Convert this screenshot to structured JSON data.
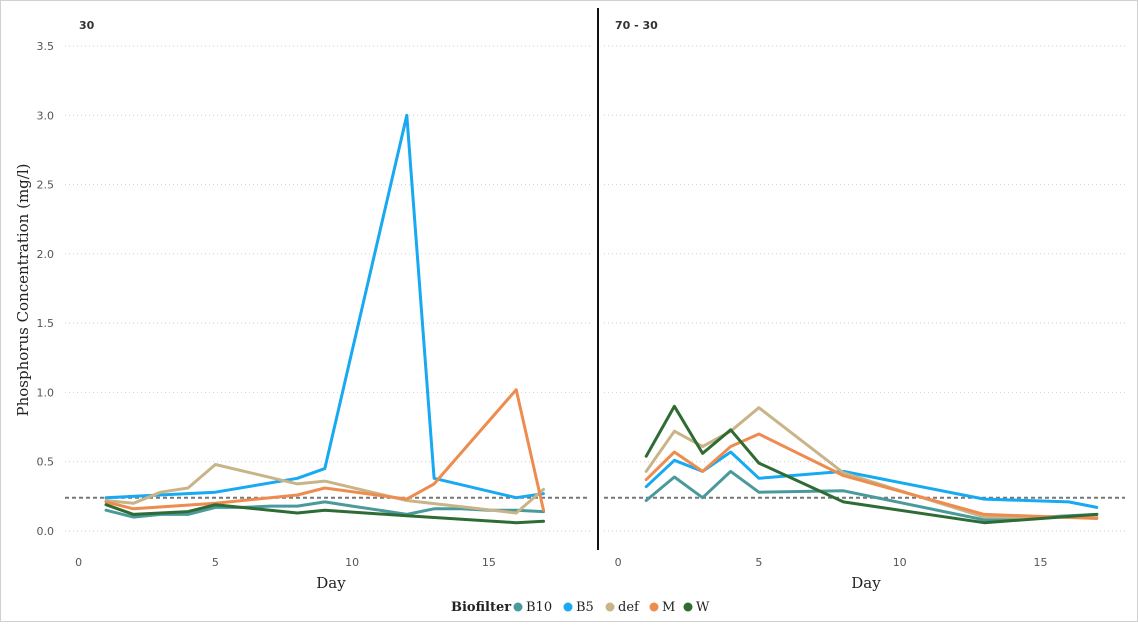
{
  "chart_data": {
    "type": "line",
    "ylabel": "Phosphorus Concentration (mg/l)",
    "y_ticks": [
      "0.0",
      "0.5",
      "1.0",
      "1.5",
      "2.0",
      "2.5",
      "3.0",
      "3.5"
    ],
    "ylim": [
      0,
      3.5
    ],
    "reference_line": {
      "y": 0.24,
      "style": "dashed",
      "color": "#777777"
    },
    "grid": "horizontal dotted",
    "legend": {
      "title": "Biofilter",
      "position": "bottom-center",
      "items": [
        "B10",
        "B5",
        "def",
        "M",
        "W"
      ]
    },
    "colors": {
      "B10": "#4A9A9C",
      "B5": "#17A9F2",
      "def": "#C8B487",
      "M": "#EE8C4F",
      "W": "#2E6B35"
    },
    "panels": [
      {
        "title": "30",
        "xlabel": "Day",
        "x_ticks": [
          "0",
          "5",
          "10",
          "15"
        ],
        "xlim": [
          -0.5,
          18.7
        ],
        "series": [
          {
            "name": "B10",
            "x": [
              1,
              2,
              3,
              4,
              5,
              6,
              7,
              8,
              9,
              10,
              11,
              12,
              13,
              14,
              15,
              16,
              17
            ],
            "y": [
              0.15,
              0.1,
              0.12,
              0.12,
              0.17,
              0.17,
              0.18,
              0.18,
              0.21,
              0.18,
              0.15,
              0.12,
              0.16,
              0.16,
              0.15,
              0.15,
              0.14
            ]
          },
          {
            "name": "B5",
            "x": [
              1,
              5,
              8,
              9,
              12,
              13,
              16,
              17
            ],
            "y": [
              0.24,
              0.28,
              0.38,
              0.45,
              3.0,
              0.38,
              0.24,
              0.27
            ]
          },
          {
            "name": "def",
            "x": [
              1,
              2,
              3,
              4,
              5,
              8,
              9,
              12,
              16,
              17
            ],
            "y": [
              0.22,
              0.2,
              0.28,
              0.31,
              0.48,
              0.34,
              0.36,
              0.22,
              0.13,
              0.3
            ]
          },
          {
            "name": "M",
            "x": [
              1,
              2,
              5,
              8,
              9,
              12,
              13,
              16,
              17
            ],
            "y": [
              0.21,
              0.16,
              0.2,
              0.26,
              0.31,
              0.23,
              0.34,
              1.02,
              0.15
            ]
          },
          {
            "name": "W",
            "x": [
              1,
              2,
              4,
              5,
              8,
              9,
              12,
              16,
              17
            ],
            "y": [
              0.19,
              0.12,
              0.14,
              0.19,
              0.13,
              0.15,
              0.11,
              0.06,
              0.07
            ]
          }
        ]
      },
      {
        "title": "70 - 30",
        "xlabel": "Day",
        "x_ticks": [
          "0",
          "5",
          "10",
          "15"
        ],
        "xlim": [
          -0.5,
          18.0
        ],
        "series": [
          {
            "name": "B10",
            "x": [
              1,
              2,
              3,
              4,
              5,
              8,
              13,
              17
            ],
            "y": [
              0.22,
              0.39,
              0.24,
              0.43,
              0.28,
              0.29,
              0.08,
              0.12
            ]
          },
          {
            "name": "B5",
            "x": [
              1,
              2,
              3,
              4,
              5,
              8,
              13,
              16,
              17
            ],
            "y": [
              0.32,
              0.51,
              0.43,
              0.57,
              0.38,
              0.43,
              0.23,
              0.21,
              0.17
            ]
          },
          {
            "name": "def",
            "x": [
              1,
              2,
              3,
              4,
              5,
              8,
              13,
              17
            ],
            "y": [
              0.43,
              0.72,
              0.61,
              0.72,
              0.89,
              0.42,
              0.1,
              0.1
            ]
          },
          {
            "name": "M",
            "x": [
              1,
              2,
              3,
              4,
              5,
              8,
              13,
              17
            ],
            "y": [
              0.37,
              0.57,
              0.43,
              0.61,
              0.7,
              0.4,
              0.12,
              0.09
            ]
          },
          {
            "name": "W",
            "x": [
              1,
              2,
              3,
              4,
              5,
              8,
              13,
              17
            ],
            "y": [
              0.54,
              0.9,
              0.56,
              0.73,
              0.49,
              0.21,
              0.06,
              0.12
            ]
          }
        ]
      }
    ]
  }
}
